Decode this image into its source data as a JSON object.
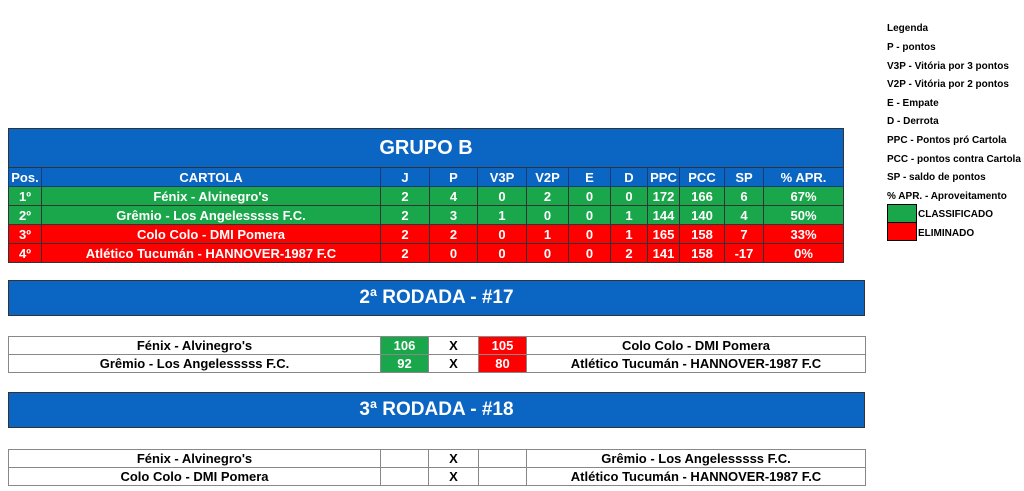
{
  "group": {
    "title": "GRUPO B",
    "headers": [
      "Pos.",
      "CARTOLA",
      "J",
      "P",
      "V3P",
      "V2P",
      "E",
      "D",
      "PPC",
      "PCC",
      "SP",
      "% APR."
    ],
    "rows": [
      {
        "status": "classificado",
        "cells": [
          "1º",
          "Fénix - Alvinegro's",
          "2",
          "4",
          "0",
          "2",
          "0",
          "0",
          "172",
          "166",
          "6",
          "67%"
        ]
      },
      {
        "status": "classificado",
        "cells": [
          "2º",
          "Grêmio  - Los Angelesssss F.C.",
          "2",
          "3",
          "1",
          "0",
          "0",
          "1",
          "144",
          "140",
          "4",
          "50%"
        ]
      },
      {
        "status": "eliminado",
        "cells": [
          "3º",
          "Colo Colo - DMI Pomera",
          "2",
          "2",
          "0",
          "1",
          "0",
          "1",
          "165",
          "158",
          "7",
          "33%"
        ]
      },
      {
        "status": "eliminado",
        "cells": [
          "4º",
          "Atlético Tucumán - HANNOVER-1987 F.C",
          "2",
          "0",
          "0",
          "0",
          "0",
          "2",
          "141",
          "158",
          "-17",
          "0%"
        ]
      }
    ]
  },
  "rounds": [
    {
      "title": "2ª RODADA - #17",
      "matches": [
        {
          "home": "Fénix - Alvinegro's",
          "home_score": "106",
          "vs": "X",
          "away_score": "105",
          "away": "Colo Colo - DMI Pomera"
        },
        {
          "home": "Grêmio  - Los Angelesssss F.C.",
          "home_score": "92",
          "vs": "X",
          "away_score": "80",
          "away": "Atlético Tucumán - HANNOVER-1987 F.C"
        }
      ]
    },
    {
      "title": "3ª RODADA - #18",
      "matches": [
        {
          "home": "Fénix - Alvinegro's",
          "home_score": "",
          "vs": "X",
          "away_score": "",
          "away": "Grêmio  - Los Angelesssss F.C."
        },
        {
          "home": "Colo Colo - DMI Pomera",
          "home_score": "",
          "vs": "X",
          "away_score": "",
          "away": "Atlético Tucumán - HANNOVER-1987 F.C"
        }
      ]
    }
  ],
  "legend": {
    "title": "Legenda",
    "items": [
      "P - pontos",
      "V3P - Vitória por 3 pontos",
      "V2P - Vitória por 2 pontos",
      "E - Empate",
      "D - Derrota",
      "PPC - Pontos pró Cartola",
      "PCC - pontos contra Cartola",
      "SP - saldo de pontos",
      "% APR. - Aproveitamento"
    ],
    "classified": "CLASSIFICADO",
    "eliminated": "ELIMINADO"
  },
  "colors": {
    "header_blue": "#0a66c2",
    "classified_green": "#1aa64b",
    "eliminated_red": "#ff0000"
  }
}
